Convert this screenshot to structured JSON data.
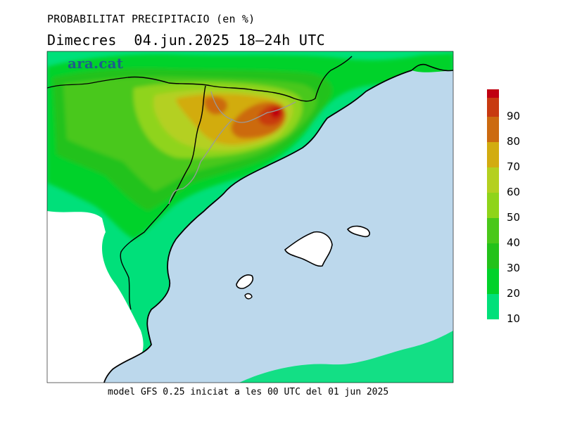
{
  "header": {
    "title": "PROBABILITAT PRECIPITACIO (en %)",
    "subtitle": "Dimecres  04.jun.2025 18—24h UTC"
  },
  "logo": {
    "text": "ara.cat"
  },
  "footer": {
    "text": "model GFS 0.25 iniciat a les 00 UTC del 01 jun 2025"
  },
  "legend": {
    "levels": [
      {
        "label": "10",
        "color": "#00e07a"
      },
      {
        "label": "20",
        "color": "#00d22a"
      },
      {
        "label": "30",
        "color": "#23c21a"
      },
      {
        "label": "40",
        "color": "#4ac81a"
      },
      {
        "label": "50",
        "color": "#8fd41a"
      },
      {
        "label": "60",
        "color": "#b4d020"
      },
      {
        "label": "70",
        "color": "#d2ac10"
      },
      {
        "label": "80",
        "color": "#cc6a10"
      },
      {
        "label": "90",
        "color": "#c83a10"
      },
      {
        "label": "",
        "color": "#c00010"
      }
    ]
  },
  "colors": {
    "sea": "#bcd8ec",
    "land_low": "#00e07a"
  }
}
